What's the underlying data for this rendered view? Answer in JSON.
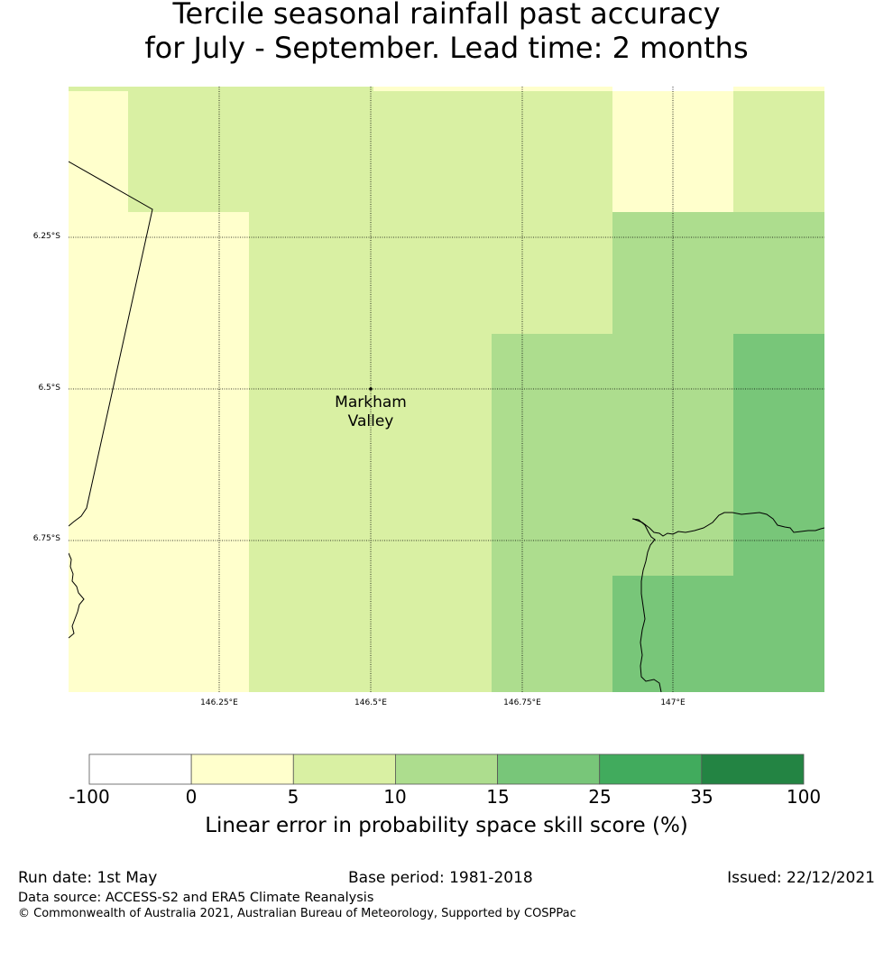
{
  "title": {
    "line1": "Tercile seasonal rainfall past accuracy",
    "line2": "for July - September. Lead time: 2 months"
  },
  "map": {
    "latitude_labels": [
      {
        "value": -6.25,
        "text": "6.25°S"
      },
      {
        "value": -6.5,
        "text": "6.5°S"
      },
      {
        "value": -6.75,
        "text": "6.75°S"
      }
    ],
    "longitude_labels": [
      {
        "value": 146.25,
        "text": "146.25°E"
      },
      {
        "value": 146.5,
        "text": "146.5°E"
      },
      {
        "value": 146.75,
        "text": "146.75°E"
      },
      {
        "value": 147.0,
        "text": "147°E"
      }
    ],
    "place": {
      "name_line1": "Markham",
      "name_line2": "Valley",
      "lat": -6.5,
      "lon": 146.5
    },
    "score_grid_rows": [
      [
        "0-5",
        "5-10",
        "5-10",
        "5-10",
        "0-5",
        "5-10"
      ],
      [
        "0-5",
        "0-5",
        "5-10",
        "5-10",
        "10-15",
        "10-15"
      ],
      [
        "0-5",
        "0-5",
        "5-10",
        "10-15",
        "10-15",
        "15-25"
      ],
      [
        "0-5",
        "0-5",
        "5-10",
        "10-15",
        "10-15",
        "15-25"
      ],
      [
        "0-5",
        "0-5",
        "5-10",
        "10-15",
        "15-25",
        "15-25"
      ]
    ]
  },
  "colorbar": {
    "ticks": [
      "-100",
      "0",
      "5",
      "10",
      "15",
      "25",
      "35",
      "100"
    ],
    "colors": [
      "#ffffff",
      "#ffffcc",
      "#d9f0a3",
      "#addd8e",
      "#78c679",
      "#41ab5d",
      "#238443"
    ],
    "label": "Linear error in probability space skill score (%)"
  },
  "footer": {
    "run_date": "Run date: 1st May",
    "base_period": "Base period: 1981-2018",
    "issued": "Issued: 22/12/2021",
    "data_source": "Data source: ACCESS-S2 and ERA5 Climate Reanalysis",
    "copyright": "© Commonwealth of Australia 2021, Australian Bureau of Meteorology, Supported by COSPPac"
  }
}
